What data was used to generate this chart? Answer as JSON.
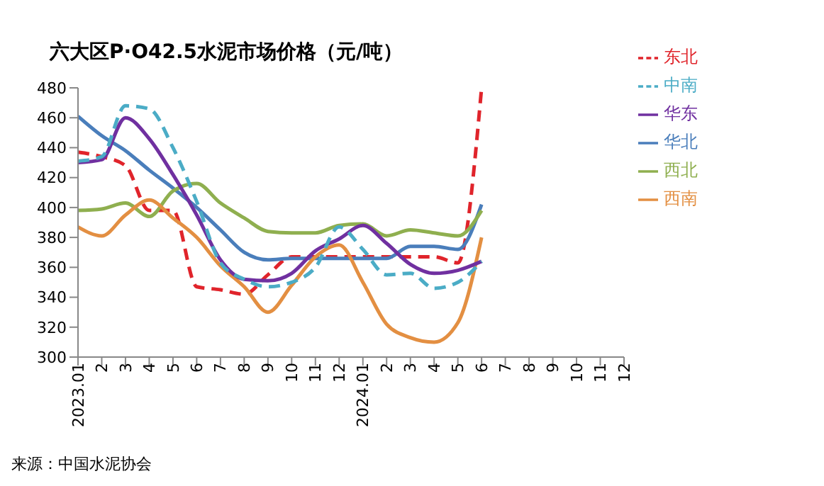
{
  "chart_data": {
    "type": "line",
    "title": "六大区P·O42.5水泥市场价格（元/吨）",
    "annotations": [
      "来源：中国水泥协会"
    ],
    "categories": [
      "2023.01",
      "2",
      "3",
      "4",
      "5",
      "6",
      "7",
      "8",
      "9",
      "10",
      "11",
      "12",
      "2024.01",
      "2",
      "3",
      "4",
      "5",
      "6",
      "7",
      "8",
      "9",
      "10",
      "11",
      "12"
    ],
    "series": [
      {
        "name": "东北",
        "color": "#e0242b",
        "line_style": "dashed",
        "values": [
          437,
          434,
          428,
          398,
          398,
          347,
          345,
          342,
          355,
          367,
          367,
          367,
          367,
          367,
          367,
          367,
          363,
          480,
          null,
          null,
          null,
          null,
          null,
          null
        ]
      },
      {
        "name": "华北",
        "color": "#4a7ebb",
        "values": [
          461,
          448,
          438,
          425,
          413,
          400,
          385,
          370,
          365,
          366,
          366,
          366,
          366,
          366,
          374,
          374,
          372,
          402,
          null,
          null,
          null,
          null,
          null,
          null
        ]
      },
      {
        "name": "西北",
        "color": "#8faf4f",
        "values": [
          398,
          399,
          403,
          394,
          411,
          416,
          403,
          393,
          384,
          383,
          383,
          388,
          389,
          381,
          385,
          383,
          381,
          398,
          null,
          null,
          null,
          null,
          null,
          null
        ]
      },
      {
        "name": "西南",
        "color": "#e38f42",
        "values": [
          387,
          381,
          395,
          405,
          393,
          380,
          361,
          347,
          330,
          348,
          367,
          375,
          350,
          322,
          313,
          310,
          323,
          380,
          null,
          null,
          null,
          null,
          null,
          null
        ]
      },
      {
        "name": "华东",
        "color": "#7030a0",
        "values": [
          430,
          432,
          460,
          446,
          422,
          395,
          365,
          352,
          351,
          356,
          371,
          379,
          388,
          376,
          362,
          356,
          358,
          364,
          null,
          null,
          null,
          null,
          null,
          null
        ]
      },
      {
        "name": "中南",
        "color": "#4bacc6",
        "line_style": "dashed",
        "values": [
          431,
          434,
          468,
          466,
          440,
          404,
          363,
          352,
          347,
          350,
          360,
          387,
          372,
          355,
          356,
          346,
          350,
          364,
          null,
          null,
          null,
          null,
          null,
          null
        ]
      }
    ],
    "ylim": [
      300,
      480
    ],
    "yticks": [
      300,
      320,
      340,
      360,
      380,
      400,
      420,
      440,
      460,
      480
    ],
    "grid": false,
    "legend": "top right",
    "marker": "none"
  }
}
